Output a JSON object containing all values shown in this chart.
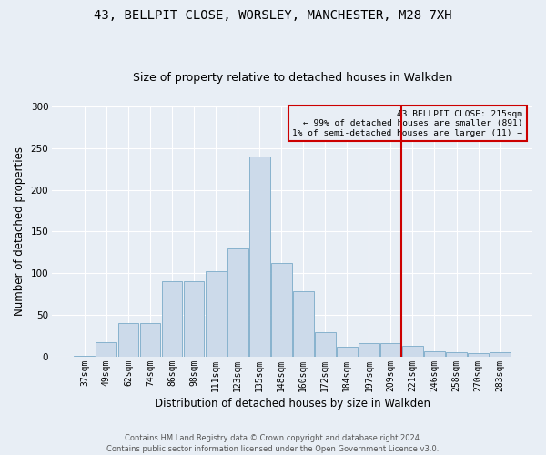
{
  "title": "43, BELLPIT CLOSE, WORSLEY, MANCHESTER, M28 7XH",
  "subtitle": "Size of property relative to detached houses in Walkden",
  "xlabel": "Distribution of detached houses by size in Walkden",
  "ylabel": "Number of detached properties",
  "bar_labels": [
    "37sqm",
    "49sqm",
    "62sqm",
    "74sqm",
    "86sqm",
    "98sqm",
    "111sqm",
    "123sqm",
    "135sqm",
    "148sqm",
    "160sqm",
    "172sqm",
    "184sqm",
    "197sqm",
    "209sqm",
    "221sqm",
    "246sqm",
    "258sqm",
    "270sqm",
    "283sqm"
  ],
  "bar_heights": [
    1,
    18,
    40,
    40,
    90,
    90,
    102,
    130,
    240,
    112,
    79,
    29,
    12,
    16,
    16,
    13,
    7,
    6,
    4,
    6
  ],
  "bar_color": "#ccdaea",
  "bar_edge_color": "#7aaac8",
  "background_color": "#e8eef5",
  "grid_color": "#ffffff",
  "vline_color": "#cc0000",
  "vline_x_index": 15,
  "ylim": [
    0,
    300
  ],
  "yticks": [
    0,
    50,
    100,
    150,
    200,
    250,
    300
  ],
  "legend_text_line1": "43 BELLPIT CLOSE: 215sqm",
  "legend_text_line2": "← 99% of detached houses are smaller (891)",
  "legend_text_line3": "1% of semi-detached houses are larger (11) →",
  "legend_box_color": "#cc0000",
  "footer": "Contains HM Land Registry data © Crown copyright and database right 2024.\nContains public sector information licensed under the Open Government Licence v3.0.",
  "title_fontsize": 10,
  "subtitle_fontsize": 9,
  "axis_label_fontsize": 8.5,
  "tick_fontsize": 7,
  "footer_fontsize": 6
}
